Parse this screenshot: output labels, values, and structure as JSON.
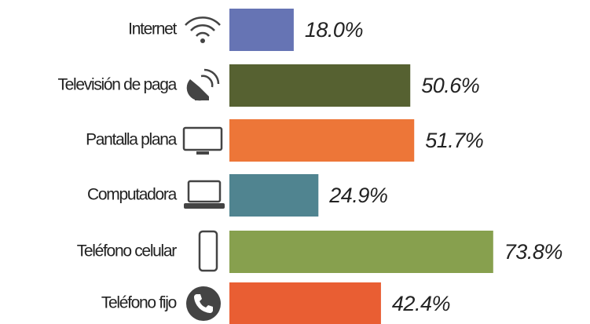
{
  "chart_data": {
    "type": "bar",
    "categories": [
      "Internet",
      "Televisión de paga",
      "Pantalla plana",
      "Computadora",
      "Teléfono celular",
      "Teléfono fijo"
    ],
    "values": [
      18.0,
      50.6,
      51.7,
      24.9,
      73.8,
      42.4
    ],
    "value_labels": [
      "18.0%",
      "50.6%",
      "51.7%",
      "24.9%",
      "73.8%",
      "42.4%"
    ],
    "colors": [
      "#6674b4",
      "#566131",
      "#ed7638",
      "#508490",
      "#87a04e",
      "#e95e33"
    ]
  }
}
